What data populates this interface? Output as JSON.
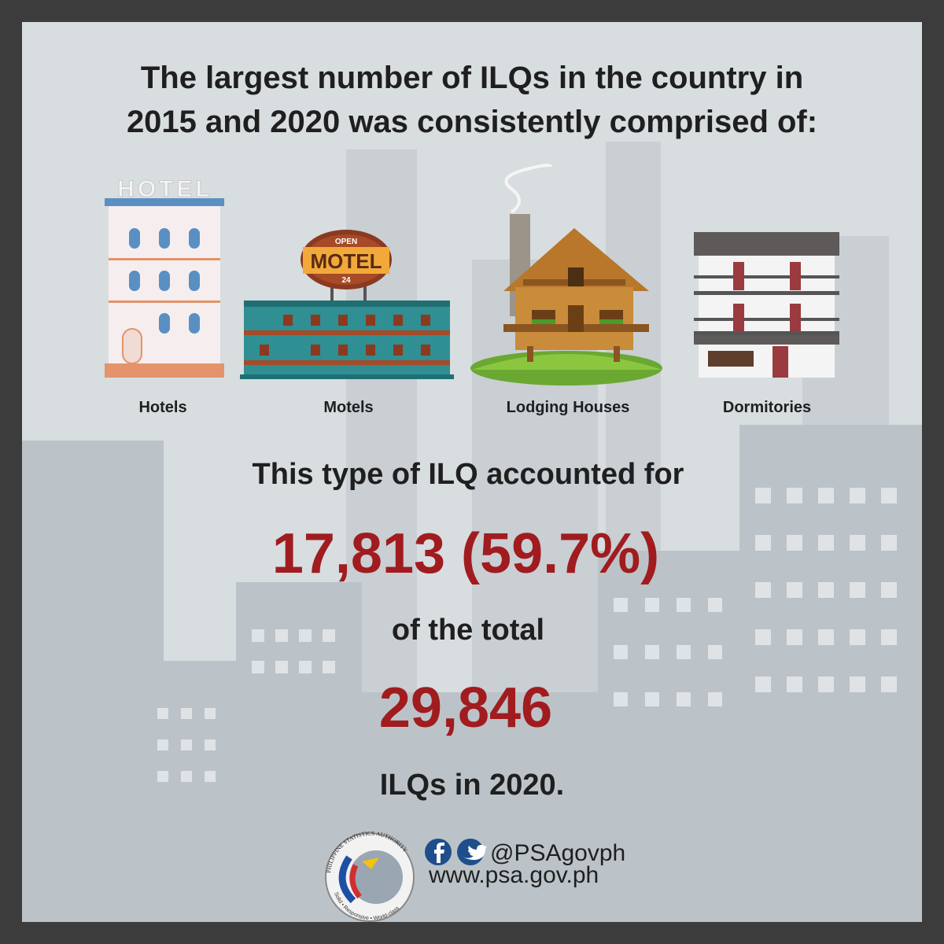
{
  "header": {
    "title_lines": [
      "The largest number of ILQs in the country in",
      "2015 and 2020 was consistently comprised of:"
    ]
  },
  "illustrations": {
    "hotel_sign": "HOTEL",
    "motel_sign_top": "OPEN",
    "motel_sign": "MOTEL",
    "motel_sign_bottom": "24"
  },
  "items": [
    "Hotels",
    "Motels",
    "Lodging Houses",
    "Dormitories"
  ],
  "statement": {
    "intro": "This type of ILQ accounted for",
    "share": "17,813 (59.7%)",
    "middle": "of the total",
    "total": "29,846",
    "outro": "ILQs in 2020."
  },
  "footer": {
    "logo_name": "PHILIPPINE STATISTICS AUTHORITY",
    "logo_motto": "Solid • Responsive • World-class",
    "handle": "@PSAgovph",
    "website": "www.psa.gov.ph"
  }
}
